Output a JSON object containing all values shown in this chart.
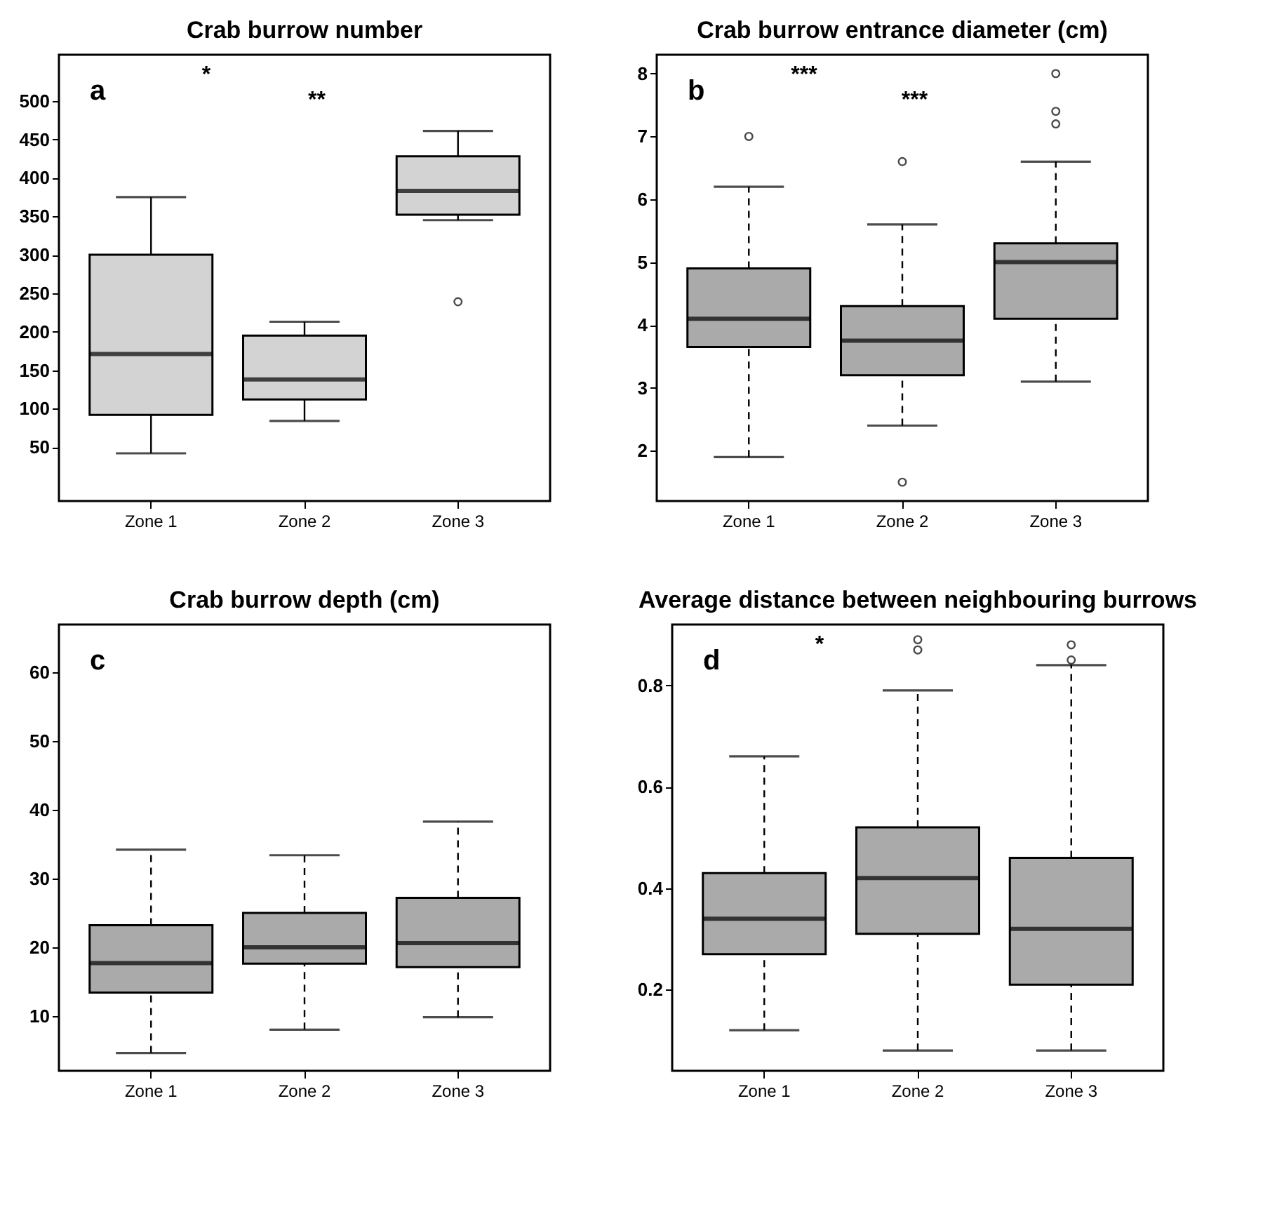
{
  "chart_data": [
    {
      "type": "box",
      "title": "Crab burrow number",
      "categories": [
        "Zone 1",
        "Zone 2",
        "Zone 3"
      ],
      "series": [
        {
          "color": "#d3d3d3",
          "boxes": [
            {
              "low": 42,
              "q1": 92,
              "median": 171,
              "q3": 300,
              "high": 375
            },
            {
              "low": 84,
              "q1": 112,
              "median": 138,
              "q3": 195,
              "high": 213
            },
            {
              "low": 345,
              "q1": 352,
              "median": 383,
              "q3": 428,
              "high": 461,
              "outliers": [
                239
              ]
            }
          ]
        }
      ],
      "ylim": [
        -20,
        560
      ],
      "yticks": [
        50,
        100,
        150,
        200,
        250,
        300,
        350,
        400,
        450,
        500
      ],
      "line_style": "solid",
      "annotations": [
        "a",
        "*",
        "**"
      ]
    },
    {
      "type": "box",
      "title": "Crab burrow entrance diameter (cm)",
      "categories": [
        "Zone 1",
        "Zone 2",
        "Zone 3"
      ],
      "series": [
        {
          "color": "#aaaaaa",
          "boxes": [
            {
              "low": 1.9,
              "q1": 3.65,
              "median": 4.1,
              "q3": 4.9,
              "high": 6.2,
              "outliers": [
                7.0
              ]
            },
            {
              "low": 2.4,
              "q1": 3.2,
              "median": 3.75,
              "q3": 4.3,
              "high": 5.6,
              "outliers": [
                6.6,
                1.5
              ]
            },
            {
              "low": 3.1,
              "q1": 4.1,
              "median": 5.0,
              "q3": 5.3,
              "high": 6.6,
              "outliers": [
                8.0,
                7.4,
                7.2
              ]
            }
          ]
        }
      ],
      "ylim": [
        1.2,
        8.3
      ],
      "yticks": [
        2,
        3,
        4,
        5,
        6,
        7,
        8
      ],
      "line_style": "dashed",
      "annotations": [
        "b",
        "***",
        "***"
      ]
    },
    {
      "type": "box",
      "title": "Crab burrow depth (cm)",
      "categories": [
        "Zone 1",
        "Zone 2",
        "Zone 3"
      ],
      "series": [
        {
          "color": "#aaaaaa",
          "boxes": [
            {
              "low": 4.6,
              "q1": 13.4,
              "median": 17.7,
              "q3": 23.2,
              "high": 34.2
            },
            {
              "low": 8,
              "q1": 17.6,
              "median": 20,
              "q3": 25,
              "high": 33.4
            },
            {
              "low": 9.8,
              "q1": 17.1,
              "median": 20.6,
              "q3": 27.2,
              "high": 38.3
            }
          ]
        }
      ],
      "ylim": [
        2,
        67
      ],
      "yticks": [
        10,
        20,
        30,
        40,
        50,
        60
      ],
      "line_style": "dashed",
      "annotations": [
        "c"
      ]
    },
    {
      "type": "box",
      "title": "Average distance between neighbouring burrows",
      "categories": [
        "Zone 1",
        "Zone 2",
        "Zone 3"
      ],
      "series": [
        {
          "color": "#aaaaaa",
          "boxes": [
            {
              "low": 0.12,
              "q1": 0.27,
              "median": 0.34,
              "q3": 0.43,
              "high": 0.66
            },
            {
              "low": 0.08,
              "q1": 0.31,
              "median": 0.42,
              "q3": 0.52,
              "high": 0.79,
              "outliers": [
                0.89,
                0.87
              ]
            },
            {
              "low": 0.08,
              "q1": 0.21,
              "median": 0.32,
              "q3": 0.46,
              "high": 0.84,
              "outliers": [
                0.88,
                0.85
              ]
            }
          ]
        }
      ],
      "ylim": [
        0.04,
        0.92
      ],
      "yticks": [
        0.2,
        0.4,
        0.6,
        0.8
      ],
      "line_style": "dashed",
      "annotations": [
        "d",
        "*"
      ]
    }
  ]
}
